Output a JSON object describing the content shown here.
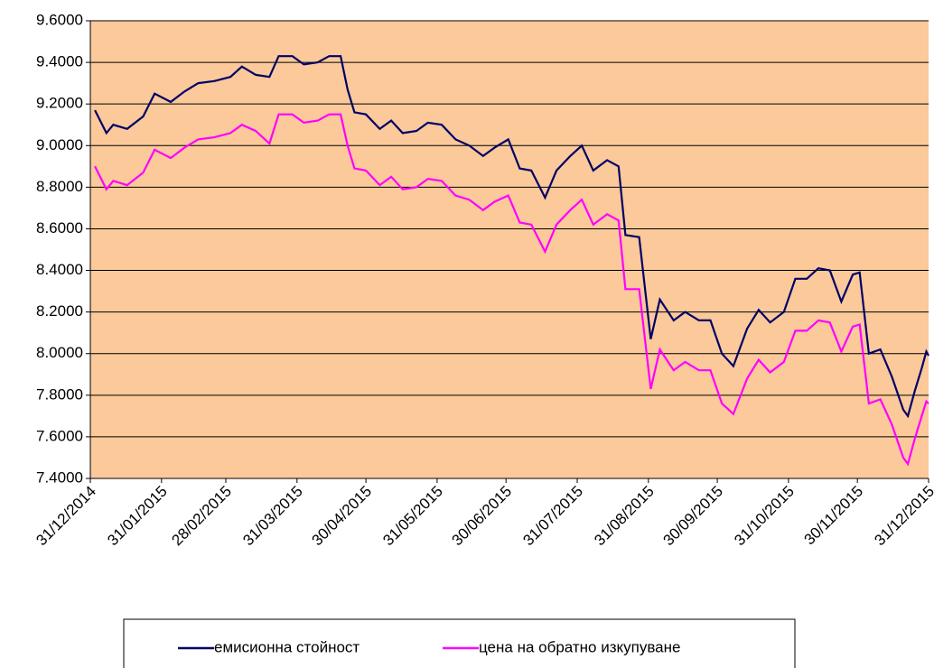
{
  "chart_data": {
    "type": "line",
    "xlim": [
      "31/12/2014",
      "31/12/2015"
    ],
    "xticks": [
      "31/12/2014",
      "31/01/2015",
      "28/02/2015",
      "31/03/2015",
      "30/04/2015",
      "31/05/2015",
      "30/06/2015",
      "31/07/2015",
      "31/08/2015",
      "30/09/2015",
      "31/10/2015",
      "30/11/2015",
      "31/12/2015"
    ],
    "ylim": [
      7.4,
      9.6
    ],
    "yticks": [
      {
        "value": 7.4,
        "label": "7.4000"
      },
      {
        "value": 7.6,
        "label": "7.6000"
      },
      {
        "value": 7.8,
        "label": "7.8000"
      },
      {
        "value": 8.0,
        "label": "8.0000"
      },
      {
        "value": 8.2,
        "label": "8.2000"
      },
      {
        "value": 8.4,
        "label": "8.4000"
      },
      {
        "value": 8.6,
        "label": "8.6000"
      },
      {
        "value": 8.8,
        "label": "8.8000"
      },
      {
        "value": 9.0,
        "label": "9.0000"
      },
      {
        "value": 9.2,
        "label": "9.2000"
      },
      {
        "value": 9.4,
        "label": "9.4000"
      },
      {
        "value": 9.6,
        "label": "9.6000"
      }
    ],
    "grid": true,
    "legend": "bottom",
    "x": [
      "02/01/2015",
      "07/01/2015",
      "10/01/2015",
      "16/01/2015",
      "23/01/2015",
      "28/01/2015",
      "04/02/2015",
      "10/02/2015",
      "16/02/2015",
      "23/02/2015",
      "02/03/2015",
      "07/03/2015",
      "13/03/2015",
      "19/03/2015",
      "23/03/2015",
      "29/03/2015",
      "03/04/2015",
      "09/04/2015",
      "14/04/2015",
      "19/04/2015",
      "22/04/2015",
      "25/04/2015",
      "30/04/2015",
      "06/05/2015",
      "11/05/2015",
      "16/05/2015",
      "22/05/2015",
      "27/05/2015",
      "02/06/2015",
      "08/06/2015",
      "14/06/2015",
      "20/06/2015",
      "25/06/2015",
      "01/07/2015",
      "06/07/2015",
      "11/07/2015",
      "17/07/2015",
      "22/07/2015",
      "28/07/2015",
      "02/08/2015",
      "07/08/2015",
      "13/08/2015",
      "18/08/2015",
      "21/08/2015",
      "27/08/2015",
      "01/09/2015",
      "05/09/2015",
      "11/09/2015",
      "16/09/2015",
      "22/09/2015",
      "27/09/2015",
      "02/10/2015",
      "07/10/2015",
      "13/10/2015",
      "18/10/2015",
      "23/10/2015",
      "29/10/2015",
      "03/11/2015",
      "08/11/2015",
      "13/11/2015",
      "18/11/2015",
      "23/11/2015",
      "28/11/2015",
      "01/12/2015",
      "05/12/2015",
      "10/12/2015",
      "15/12/2015",
      "20/12/2015",
      "22/12/2015",
      "25/12/2015",
      "28/12/2015",
      "30/12/2015",
      "31/12/2015"
    ],
    "series": [
      {
        "name": "емисионна стойност",
        "color": "#000066",
        "values": [
          9.17,
          9.06,
          9.1,
          9.08,
          9.14,
          9.25,
          9.21,
          9.26,
          9.3,
          9.31,
          9.33,
          9.38,
          9.34,
          9.33,
          9.43,
          9.43,
          9.39,
          9.4,
          9.43,
          9.43,
          9.27,
          9.16,
          9.15,
          9.08,
          9.12,
          9.06,
          9.07,
          9.11,
          9.1,
          9.03,
          9.0,
          8.95,
          8.99,
          9.03,
          8.89,
          8.88,
          8.75,
          8.88,
          8.95,
          9.0,
          8.88,
          8.93,
          8.9,
          8.57,
          8.56,
          8.07,
          8.26,
          8.16,
          8.2,
          8.16,
          8.16,
          8.0,
          7.94,
          8.12,
          8.21,
          8.15,
          8.2,
          8.36,
          8.36,
          8.41,
          8.4,
          8.25,
          8.38,
          8.39,
          8.0,
          8.02,
          7.89,
          7.73,
          7.7,
          7.82,
          7.93,
          8.01,
          7.99
        ]
      },
      {
        "name": "цена на обратно изкупуване",
        "color": "#FF00FF",
        "values": [
          8.9,
          8.79,
          8.83,
          8.81,
          8.87,
          8.98,
          8.94,
          8.99,
          9.03,
          9.04,
          9.06,
          9.1,
          9.07,
          9.01,
          9.15,
          9.15,
          9.11,
          9.12,
          9.15,
          9.15,
          9.0,
          8.89,
          8.88,
          8.81,
          8.85,
          8.79,
          8.8,
          8.84,
          8.83,
          8.76,
          8.74,
          8.69,
          8.73,
          8.76,
          8.63,
          8.62,
          8.49,
          8.62,
          8.69,
          8.74,
          8.62,
          8.67,
          8.64,
          8.31,
          8.31,
          7.83,
          8.02,
          7.92,
          7.96,
          7.92,
          7.92,
          7.76,
          7.71,
          7.88,
          7.97,
          7.91,
          7.96,
          8.11,
          8.11,
          8.16,
          8.15,
          8.01,
          8.13,
          8.14,
          7.76,
          7.78,
          7.66,
          7.5,
          7.47,
          7.59,
          7.7,
          7.77,
          7.76
        ]
      }
    ]
  }
}
